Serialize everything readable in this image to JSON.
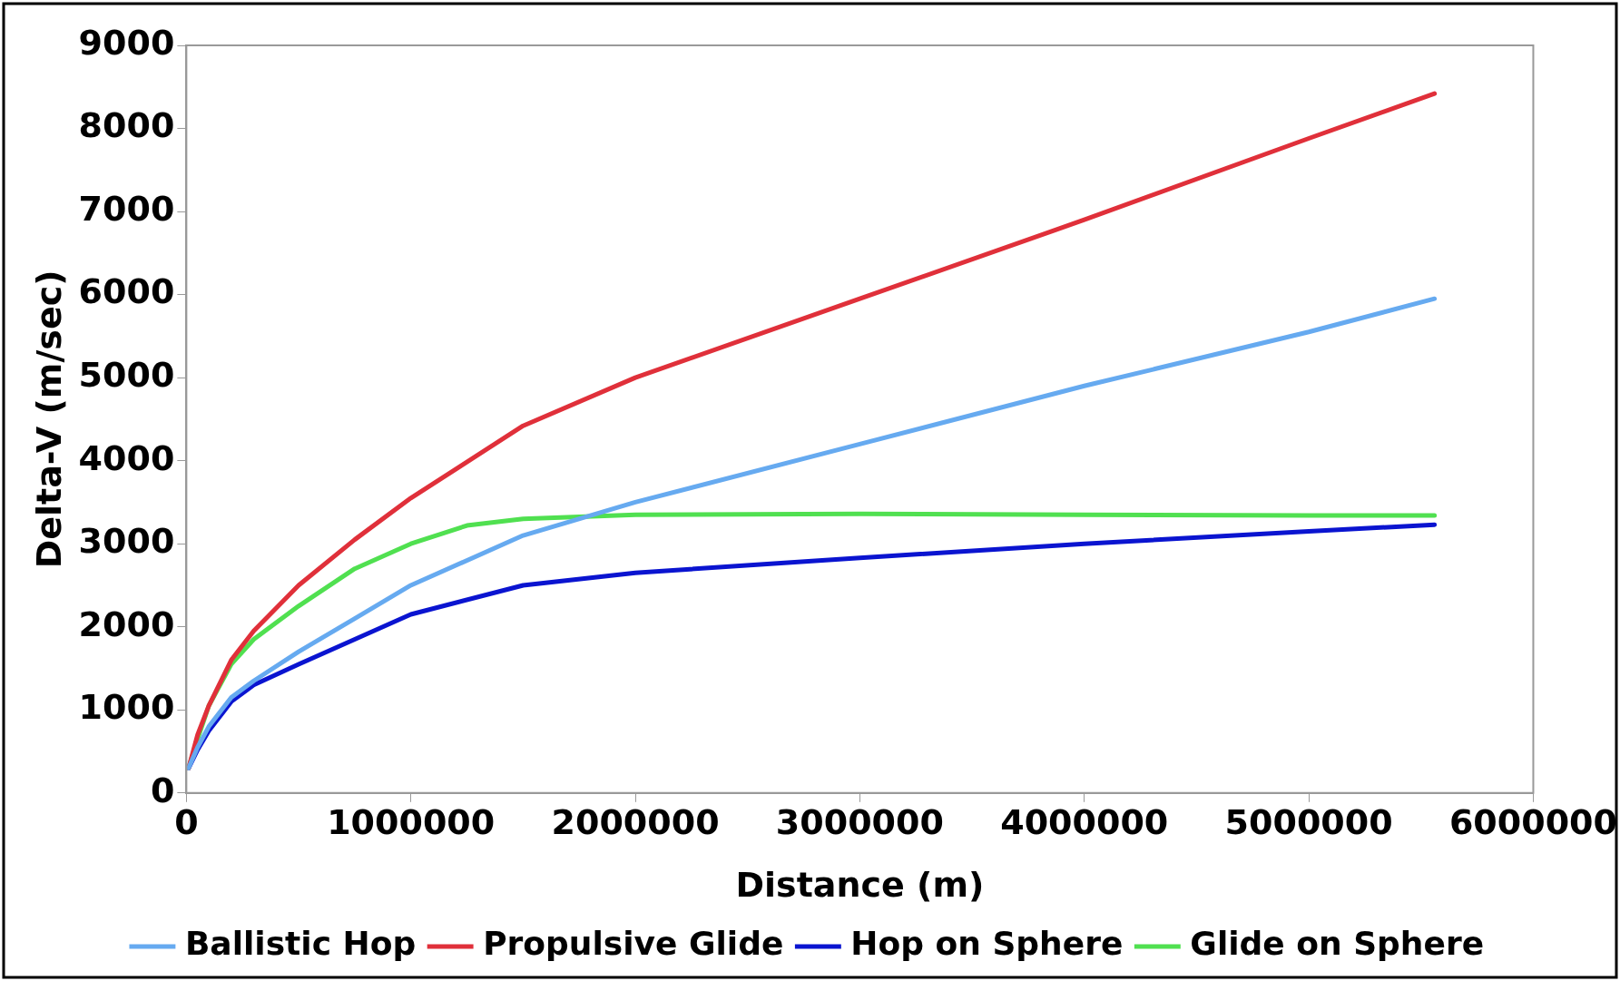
{
  "chart_data": {
    "type": "line",
    "xlabel": "Distance (m)",
    "ylabel": "Delta-V (m/sec)",
    "xlim": [
      0,
      6000000
    ],
    "xticks": [
      0,
      1000000,
      2000000,
      3000000,
      4000000,
      5000000,
      6000000
    ],
    "ylim": [
      0,
      9000
    ],
    "yticks": [
      0,
      1000,
      2000,
      3000,
      4000,
      5000,
      6000,
      7000,
      8000,
      9000
    ],
    "grid": false,
    "legend": "bottom",
    "marker": "none",
    "line_style": "solid",
    "series": [
      {
        "name": "Ballistic Hop",
        "color": "#66aaf0",
        "x": [
          10000,
          50000,
          100000,
          200000,
          300000,
          500000,
          750000,
          1000000,
          1500000,
          2000000,
          3000000,
          4000000,
          5000000,
          5560000
        ],
        "values": [
          300,
          550,
          800,
          1150,
          1350,
          1700,
          2100,
          2500,
          3100,
          3500,
          4200,
          4900,
          5550,
          5950
        ]
      },
      {
        "name": "Propulsive Glide",
        "color": "#e0303a",
        "x": [
          10000,
          50000,
          100000,
          200000,
          300000,
          500000,
          750000,
          1000000,
          1500000,
          2000000,
          3000000,
          4000000,
          5000000,
          5560000
        ],
        "values": [
          300,
          700,
          1050,
          1600,
          1950,
          2500,
          3050,
          3550,
          4420,
          5000,
          5950,
          6900,
          7880,
          8420
        ]
      },
      {
        "name": "Hop on Sphere",
        "color": "#0a14d0",
        "x": [
          10000,
          50000,
          100000,
          200000,
          300000,
          500000,
          750000,
          1000000,
          1500000,
          2000000,
          3000000,
          4000000,
          5000000,
          5560000
        ],
        "values": [
          300,
          520,
          750,
          1100,
          1300,
          1550,
          1850,
          2150,
          2500,
          2650,
          2830,
          3000,
          3150,
          3230
        ]
      },
      {
        "name": "Glide on Sphere",
        "color": "#50e050",
        "x": [
          10000,
          50000,
          100000,
          200000,
          300000,
          500000,
          750000,
          1000000,
          1250000,
          1500000,
          2000000,
          3000000,
          4000000,
          5000000,
          5560000
        ],
        "values": [
          300,
          650,
          1050,
          1550,
          1850,
          2250,
          2700,
          3000,
          3220,
          3300,
          3350,
          3360,
          3350,
          3340,
          3340
        ]
      }
    ]
  }
}
